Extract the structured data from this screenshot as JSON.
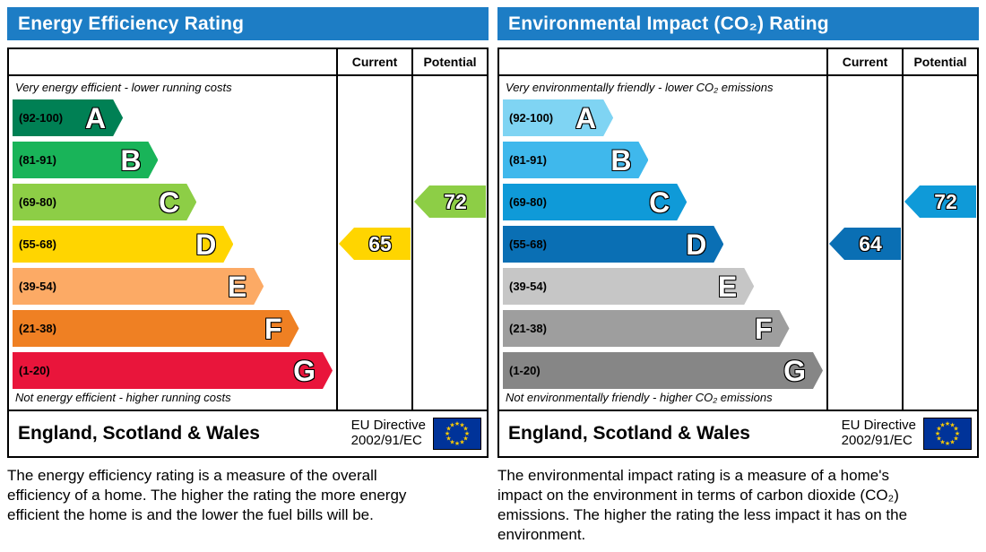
{
  "colors": {
    "header_bg": "#1d7dc5",
    "border": "#000000",
    "flag_bg": "#003399",
    "flag_star": "#ffcc00"
  },
  "panels": [
    {
      "title": "Energy Efficiency Rating",
      "columns": [
        "Current",
        "Potential"
      ],
      "top_note": "Very energy efficient - lower running costs",
      "bottom_note": "Not energy efficient - higher running costs",
      "bands": [
        {
          "letter": "A",
          "range": "(92-100)",
          "color": "#008054",
          "width_pct": 34.5
        },
        {
          "letter": "B",
          "range": "(81-91)",
          "color": "#19b459",
          "width_pct": 45.5
        },
        {
          "letter": "C",
          "range": "(69-80)",
          "color": "#8dce46",
          "width_pct": 57.5
        },
        {
          "letter": "D",
          "range": "(55-68)",
          "color": "#ffd500",
          "width_pct": 69
        },
        {
          "letter": "E",
          "range": "(39-54)",
          "color": "#fcaa65",
          "width_pct": 78.5
        },
        {
          "letter": "F",
          "range": "(21-38)",
          "color": "#ef8023",
          "width_pct": 89.5
        },
        {
          "letter": "G",
          "range": "(1-20)",
          "color": "#e9153b",
          "width_pct": 100
        }
      ],
      "current": {
        "value": 65,
        "band": "D",
        "color": "#ffd500"
      },
      "potential": {
        "value": 72,
        "band": "C",
        "color": "#8dce46"
      },
      "footer": {
        "region": "England, Scotland & Wales",
        "directive_line1": "EU Directive",
        "directive_line2": "2002/91/EC"
      },
      "description": "The energy efficiency rating is a measure of the overall efficiency of a home. The higher the rating the more energy efficient the home is and the lower the fuel bills will be."
    },
    {
      "title": "Environmental Impact (CO₂) Rating",
      "columns": [
        "Current",
        "Potential"
      ],
      "top_note": "Very environmentally friendly - lower CO₂ emissions",
      "bottom_note": "Not environmentally friendly - higher CO₂ emissions",
      "bands": [
        {
          "letter": "A",
          "range": "(92-100)",
          "color": "#7fd4f3",
          "width_pct": 34.5
        },
        {
          "letter": "B",
          "range": "(81-91)",
          "color": "#3fb8ec",
          "width_pct": 45.5
        },
        {
          "letter": "C",
          "range": "(69-80)",
          "color": "#0f9ad8",
          "width_pct": 57.5
        },
        {
          "letter": "D",
          "range": "(55-68)",
          "color": "#0a6fb4",
          "width_pct": 69
        },
        {
          "letter": "E",
          "range": "(39-54)",
          "color": "#c6c6c6",
          "width_pct": 78.5
        },
        {
          "letter": "F",
          "range": "(21-38)",
          "color": "#9e9e9e",
          "width_pct": 89.5
        },
        {
          "letter": "G",
          "range": "(1-20)",
          "color": "#868686",
          "width_pct": 100
        }
      ],
      "current": {
        "value": 64,
        "band": "D",
        "color": "#0a6fb4"
      },
      "potential": {
        "value": 72,
        "band": "C",
        "color": "#0f9ad8"
      },
      "footer": {
        "region": "England, Scotland & Wales",
        "directive_line1": "EU Directive",
        "directive_line2": "2002/91/EC"
      },
      "description": "The environmental impact rating is a measure of a home's impact on the environment in terms of carbon dioxide (CO₂) emissions. The higher the rating the less impact it has on the environment."
    }
  ],
  "chart_data": [
    {
      "type": "bar",
      "title": "Energy Efficiency Rating",
      "categories": [
        "A (92-100)",
        "B (81-91)",
        "C (69-80)",
        "D (55-68)",
        "E (39-54)",
        "F (21-38)",
        "G (1-20)"
      ],
      "series": [
        {
          "name": "Current",
          "values": [
            65
          ],
          "band": "D"
        },
        {
          "name": "Potential",
          "values": [
            72
          ],
          "band": "C"
        }
      ],
      "xlim": [
        1,
        100
      ],
      "notes": [
        "Very energy efficient - lower running costs",
        "Not energy efficient - higher running costs"
      ],
      "footer": "England, Scotland & Wales — EU Directive 2002/91/EC"
    },
    {
      "type": "bar",
      "title": "Environmental Impact (CO₂) Rating",
      "categories": [
        "A (92-100)",
        "B (81-91)",
        "C (69-80)",
        "D (55-68)",
        "E (39-54)",
        "F (21-38)",
        "G (1-20)"
      ],
      "series": [
        {
          "name": "Current",
          "values": [
            64
          ],
          "band": "D"
        },
        {
          "name": "Potential",
          "values": [
            72
          ],
          "band": "C"
        }
      ],
      "xlim": [
        1,
        100
      ],
      "notes": [
        "Very environmentally friendly - lower CO₂ emissions",
        "Not environmentally friendly - higher CO₂ emissions"
      ],
      "footer": "England, Scotland & Wales — EU Directive 2002/91/EC"
    }
  ]
}
